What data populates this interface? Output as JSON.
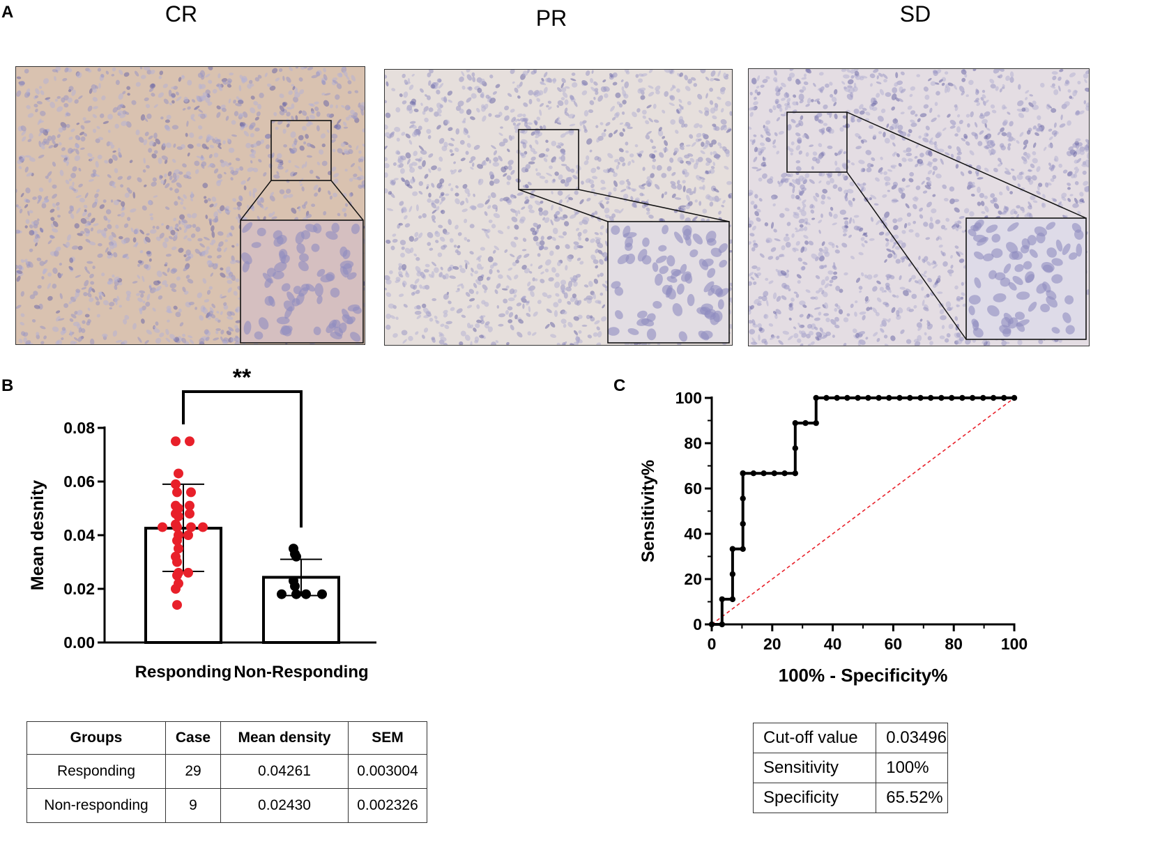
{
  "panel_a": {
    "letter": "A",
    "images": [
      {
        "title": "CR",
        "tint": "#d9c2b0"
      },
      {
        "title": "PR",
        "tint": "#e6dfdc"
      },
      {
        "title": "SD",
        "tint": "#e4dde3"
      }
    ]
  },
  "panel_b": {
    "letter": "B",
    "significance": "**",
    "table": {
      "headers": [
        "Groups",
        "Case",
        "Mean density",
        "SEM"
      ],
      "rows": [
        [
          "Responding",
          "29",
          "0.04261",
          "0.003004"
        ],
        [
          "Non-responding",
          "9",
          "0.02430",
          "0.002326"
        ]
      ]
    }
  },
  "panel_c": {
    "letter": "C",
    "table": {
      "rows": [
        [
          "Cut-off value",
          "0.03496"
        ],
        [
          "Sensitivity",
          "100%"
        ],
        [
          "Specificity",
          "65.52%"
        ]
      ]
    }
  },
  "chart_data": [
    {
      "type": "bar",
      "ylabel": "Mean desnity",
      "ylim": [
        0,
        0.08
      ],
      "yticks": [
        "0.00",
        "0.02",
        "0.04",
        "0.06",
        "0.08"
      ],
      "categories": [
        "Responding",
        "Non-Responding"
      ],
      "values": [
        0.04261,
        0.0243
      ],
      "error_bars": [
        [
          0.0265,
          0.059
        ],
        [
          0.0175,
          0.031
        ]
      ],
      "points_color": [
        "#e8202a",
        "#000000"
      ],
      "points": [
        [
          0.075,
          0.075,
          0.063,
          0.059,
          0.056,
          0.056,
          0.051,
          0.051,
          0.05,
          0.048,
          0.048,
          0.047,
          0.044,
          0.043,
          0.043,
          0.043,
          0.043,
          0.04,
          0.04,
          0.038,
          0.035,
          0.032,
          0.03,
          0.026,
          0.026,
          0.025,
          0.022,
          0.02,
          0.014
        ],
        [
          0.035,
          0.033,
          0.032,
          0.023,
          0.021,
          0.018,
          0.018,
          0.018,
          0.018
        ]
      ]
    },
    {
      "type": "line",
      "xlabel": "100% - Specificity%",
      "ylabel": "Sensitivity%",
      "xlim": [
        0,
        100
      ],
      "ylim": [
        0,
        100
      ],
      "xticks": [
        "0",
        "20",
        "40",
        "60",
        "80",
        "100"
      ],
      "yticks": [
        "0",
        "20",
        "40",
        "60",
        "80",
        "100"
      ],
      "series": [
        {
          "color": "#000000",
          "x": [
            0,
            3.4,
            3.4,
            6.9,
            6.9,
            6.9,
            6.9,
            10.3,
            10.3,
            10.3,
            10.3,
            10.3,
            13.8,
            17.2,
            20.7,
            24.1,
            27.6,
            27.6,
            27.6,
            31.0,
            34.5,
            34.5,
            37.9,
            41.4,
            44.8,
            48.3,
            51.7,
            55.2,
            58.6,
            62.1,
            65.5,
            69.0,
            72.4,
            75.9,
            79.3,
            82.8,
            86.2,
            89.7,
            93.1,
            96.6,
            100
          ],
          "y": [
            0,
            0,
            11.1,
            11.1,
            22.2,
            33.3,
            33.3,
            33.3,
            44.4,
            55.6,
            66.7,
            66.7,
            66.7,
            66.7,
            66.7,
            66.7,
            66.7,
            77.8,
            88.9,
            88.9,
            88.9,
            100,
            100,
            100,
            100,
            100,
            100,
            100,
            100,
            100,
            100,
            100,
            100,
            100,
            100,
            100,
            100,
            100,
            100,
            100,
            100
          ]
        },
        {
          "color": "#e8202a",
          "dashed": true,
          "x": [
            0,
            100
          ],
          "y": [
            0,
            100
          ]
        }
      ]
    }
  ]
}
